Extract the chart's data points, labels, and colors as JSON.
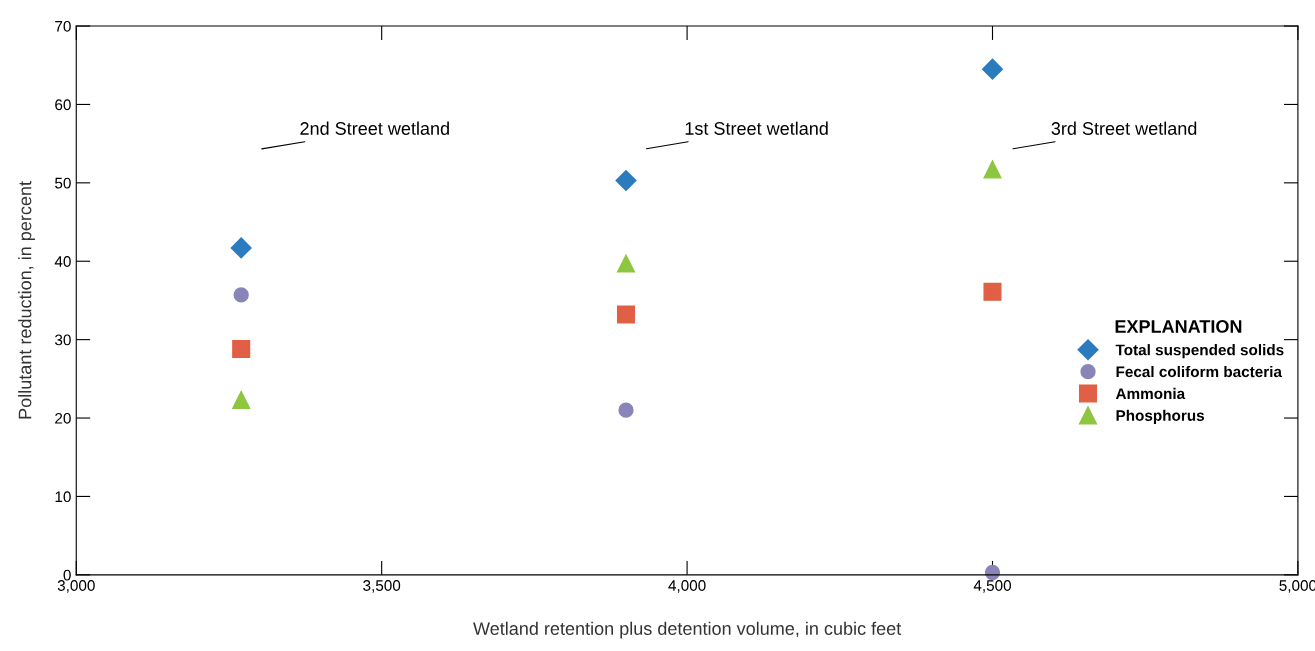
{
  "chart_data": {
    "type": "scatter",
    "xlabel": "Wetland retention plus detention volume, in cubic feet",
    "ylabel": "Pollutant reduction, in percent",
    "legend_title": "EXPLANATION",
    "x": [
      3270,
      3900,
      4500
    ],
    "series": [
      {
        "name": "Total suspended solids",
        "color": "#2b7bbf",
        "marker": "diamond",
        "values": [
          41.7,
          50.3,
          64.5
        ]
      },
      {
        "name": "Fecal coliform bacteria",
        "color": "#8a85b8",
        "marker": "circle",
        "values": [
          35.7,
          21.0,
          0.3
        ]
      },
      {
        "name": "Ammonia",
        "color": "#e05f45",
        "marker": "square",
        "values": [
          28.8,
          33.2,
          36.1
        ]
      },
      {
        "name": "Phosphorus",
        "color": "#8dc63f",
        "marker": "triangle",
        "values": [
          22.3,
          39.7,
          51.7
        ]
      }
    ],
    "annotations": [
      "2nd Street wetland",
      "1st Street wetland",
      "3rd Street wetland"
    ],
    "xlim": [
      3000,
      5000
    ],
    "xticks": [
      {
        "value": 3000,
        "label": "3,000"
      },
      {
        "value": 3500,
        "label": "3,500"
      },
      {
        "value": 4000,
        "label": "4,000"
      },
      {
        "value": 4500,
        "label": "4,500"
      },
      {
        "value": 5000,
        "label": "5,000"
      }
    ],
    "ylim": [
      0,
      70
    ],
    "yticks": [
      0,
      10,
      20,
      30,
      40,
      50,
      60,
      70
    ],
    "grid": false,
    "legend": "right"
  }
}
